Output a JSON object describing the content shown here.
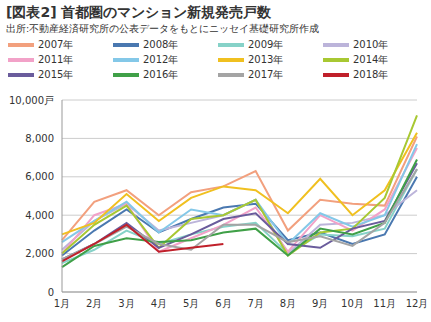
{
  "chart_data": {
    "type": "line",
    "title": "[図表2] 首都圏のマンション新規発売戸数",
    "subtitle": "出所:不動産経済研究所の公表データをもとにニッセイ基礎研究所作成",
    "categories": [
      "1月",
      "2月",
      "3月",
      "4月",
      "5月",
      "6月",
      "7月",
      "8月",
      "9月",
      "10月",
      "11月",
      "12月"
    ],
    "ylim": [
      0,
      10000
    ],
    "yticks": [
      0,
      {
        "value": 2000,
        "label": "2,000"
      },
      {
        "value": 4000,
        "label": "4,000"
      },
      {
        "value": 6000,
        "label": "6,000"
      },
      {
        "value": 8000,
        "label": "8,000"
      },
      {
        "value": 10000,
        "label": "10,000戸"
      }
    ],
    "grid": true,
    "series": [
      {
        "name": "2007年",
        "color": "#f2a07e",
        "values": [
          2700,
          4700,
          5300,
          4000,
          5200,
          5500,
          6300,
          3200,
          4800,
          4600,
          4500,
          8100
        ]
      },
      {
        "name": "2008年",
        "color": "#4a78b0",
        "values": [
          1900,
          3200,
          4300,
          3100,
          3800,
          4400,
          4600,
          2700,
          3100,
          2500,
          3000,
          6000
        ]
      },
      {
        "name": "2009年",
        "color": "#86d2c8",
        "values": [
          1500,
          2200,
          3200,
          2500,
          3000,
          3400,
          3600,
          2000,
          3000,
          2900,
          3300,
          6400
        ]
      },
      {
        "name": "2010年",
        "color": "#bcb4da",
        "values": [
          2200,
          3700,
          4600,
          3200,
          3600,
          4000,
          4800,
          2000,
          3500,
          3600,
          4000,
          5300
        ]
      },
      {
        "name": "2011年",
        "color": "#f2a2c8",
        "values": [
          2000,
          4000,
          4600,
          2100,
          2800,
          3500,
          4400,
          2100,
          4000,
          3200,
          4300,
          7500
        ]
      },
      {
        "name": "2012年",
        "color": "#84c8e8",
        "values": [
          2600,
          3700,
          4700,
          3100,
          4300,
          4000,
          4800,
          2500,
          4100,
          3400,
          4000,
          7700
        ]
      },
      {
        "name": "2013年",
        "color": "#f0c020",
        "values": [
          3000,
          3600,
          5100,
          3700,
          4900,
          5500,
          5300,
          4100,
          5900,
          4000,
          5300,
          8300
        ]
      },
      {
        "name": "2014年",
        "color": "#a8c832",
        "values": [
          2000,
          3500,
          4500,
          2300,
          3800,
          4000,
          4800,
          1900,
          3100,
          3300,
          4900,
          9200
        ]
      },
      {
        "name": "2015年",
        "color": "#6a5c9c",
        "values": [
          1700,
          2500,
          3600,
          2300,
          3000,
          3800,
          4100,
          2500,
          2300,
          3300,
          3700,
          6700
        ]
      },
      {
        "name": "2016年",
        "color": "#40a048",
        "values": [
          1300,
          2400,
          2800,
          2600,
          2700,
          3100,
          3300,
          1900,
          3300,
          3000,
          3600,
          6900
        ]
      },
      {
        "name": "2017年",
        "color": "#a4a4a4",
        "values": [
          1700,
          2500,
          3400,
          2500,
          2200,
          3500,
          3500,
          2600,
          2900,
          2400,
          3600,
          6400
        ]
      },
      {
        "name": "2018年",
        "color": "#c0202a",
        "values": [
          1600,
          2500,
          3500,
          2100,
          2300,
          2500,
          null,
          null,
          null,
          null,
          null,
          null
        ]
      }
    ]
  }
}
